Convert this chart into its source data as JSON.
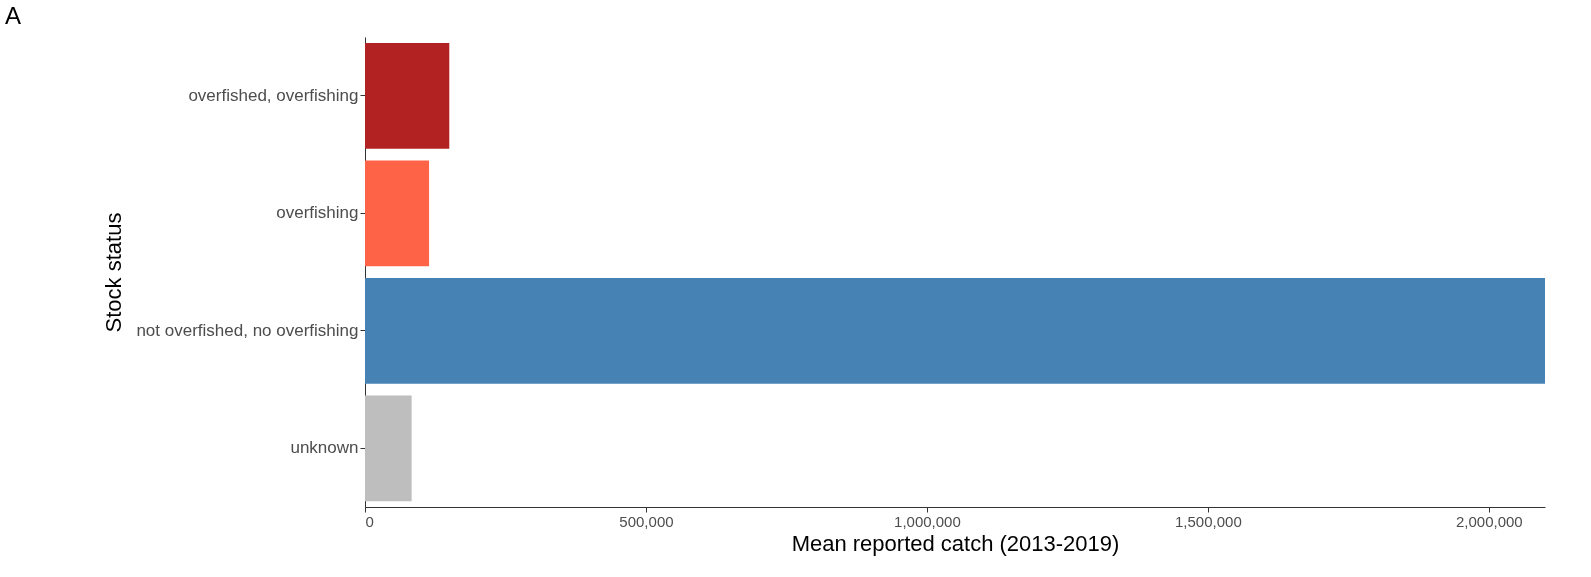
{
  "chart_data": {
    "type": "bar",
    "orientation": "horizontal",
    "title": "A",
    "xlabel": "Mean reported catch (2013-2019)",
    "ylabel": "Stock status",
    "categories": [
      "overfished, overfishing",
      "overfishing",
      "not overfished, no overfishing",
      "unknown"
    ],
    "values": [
      150000,
      114000,
      2100000,
      83000
    ],
    "colors": [
      "#b22222",
      "#ff6347",
      "#4682b4",
      "#bebebe"
    ],
    "xlim": [
      0,
      2100000
    ],
    "xticks": [
      0,
      {
        "value": 500000,
        "label": "500,000"
      },
      {
        "value": 1000000,
        "label": "1,000,000"
      },
      {
        "value": 1500000,
        "label": "1,500,000"
      },
      {
        "value": 2000000,
        "label": "2,000,000"
      }
    ],
    "grid": false
  }
}
